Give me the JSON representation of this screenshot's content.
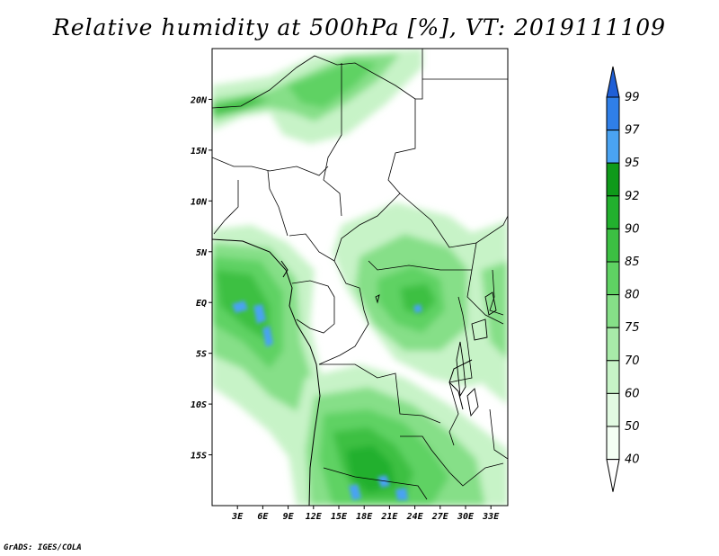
{
  "title": "Relative humidity at 500hPa [%], VT: 2019111109",
  "footer": "GrADS: IGES/COLA",
  "lon_labels": [
    "3E",
    "6E",
    "9E",
    "12E",
    "15E",
    "18E",
    "21E",
    "24E",
    "27E",
    "30E",
    "33E"
  ],
  "lat_labels": [
    "20N",
    "15N",
    "10N",
    "5N",
    "EQ",
    "5S",
    "10S",
    "15S"
  ],
  "colorbar": {
    "levels": [
      "99",
      "97",
      "95",
      "92",
      "90",
      "85",
      "80",
      "75",
      "70",
      "60",
      "50",
      "40"
    ],
    "colors": [
      "#1f5fd6",
      "#2f7fe8",
      "#4aa3f2",
      "#0f9a1a",
      "#22b02e",
      "#3cc043",
      "#5fd263",
      "#86df88",
      "#a8eaa9",
      "#c7f3c7",
      "#e2fae2",
      "#f4fff4"
    ]
  },
  "map_extent": {
    "lon_min": 0,
    "lon_max": 35,
    "lat_min": -20,
    "lat_max": 25
  },
  "humidity_fields": [
    {
      "name": "humid-zone-sahara-north",
      "lon": 7,
      "lat": 21,
      "level": "60"
    },
    {
      "name": "humid-zone-gulf-of-guinea",
      "lon": 2,
      "lat": 2,
      "level": "75"
    },
    {
      "name": "humid-zone-congo-basin",
      "lon": 23,
      "lat": 1,
      "level": "80"
    },
    {
      "name": "humid-zone-angola-zambia",
      "lon": 19,
      "lat": -14,
      "level": "85"
    },
    {
      "name": "humid-zone-east-africa",
      "lon": 31,
      "lat": -2,
      "level": "60"
    }
  ]
}
